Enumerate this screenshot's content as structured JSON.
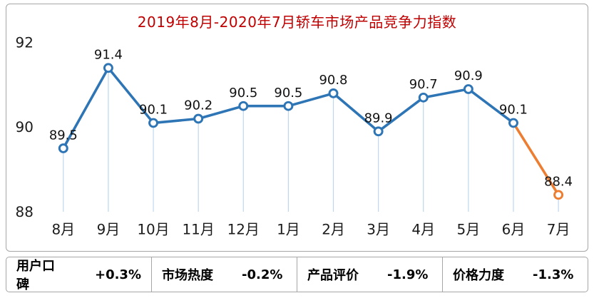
{
  "chart_data": {
    "type": "line",
    "title": "2019年8月-2020年7月轿车市场产品竞争力指数",
    "categories": [
      "8月",
      "9月",
      "10月",
      "11月",
      "12月",
      "1月",
      "2月",
      "3月",
      "4月",
      "5月",
      "6月",
      "7月"
    ],
    "values": [
      89.5,
      91.4,
      90.1,
      90.2,
      90.5,
      90.5,
      90.8,
      89.9,
      90.7,
      90.9,
      90.1,
      88.4
    ],
    "ylim": [
      88,
      92
    ],
    "yticks": [
      92,
      90,
      88
    ],
    "xlabel": "",
    "ylabel": "",
    "grid": false,
    "legend": "none",
    "line_color": "#2E75B6",
    "last_segment_color": "#ED7D31",
    "stem_color": "#BDD7EE",
    "marker_fill": "#FFFFFF",
    "label_color": "#111111",
    "title_color": "#C00000"
  },
  "stats": [
    {
      "label": "用户口碑",
      "value": "+0.3%"
    },
    {
      "label": "市场热度",
      "value": "-0.2%"
    },
    {
      "label": "产品评价",
      "value": "-1.9%"
    },
    {
      "label": "价格力度",
      "value": "-1.3%"
    }
  ]
}
